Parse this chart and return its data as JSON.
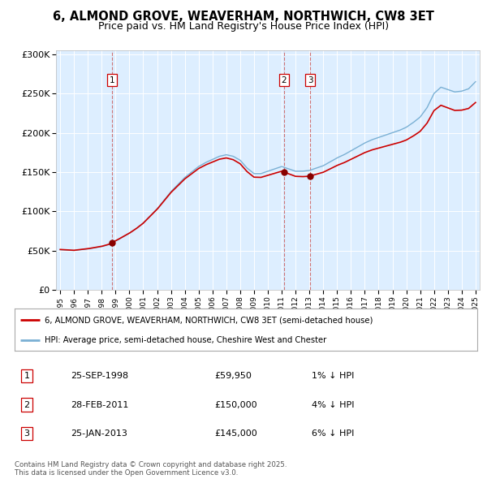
{
  "title": "6, ALMOND GROVE, WEAVERHAM, NORTHWICH, CW8 3ET",
  "subtitle": "Price paid vs. HM Land Registry's House Price Index (HPI)",
  "legend_line1": "6, ALMOND GROVE, WEAVERHAM, NORTHWICH, CW8 3ET (semi-detached house)",
  "legend_line2": "HPI: Average price, semi-detached house, Cheshire West and Chester",
  "footer": "Contains HM Land Registry data © Crown copyright and database right 2025.\nThis data is licensed under the Open Government Licence v3.0.",
  "transactions": [
    {
      "num": 1,
      "date": "25-SEP-1998",
      "price": "£59,950",
      "pct": "1% ↓ HPI"
    },
    {
      "num": 2,
      "date": "28-FEB-2011",
      "price": "£150,000",
      "pct": "4% ↓ HPI"
    },
    {
      "num": 3,
      "date": "25-JAN-2013",
      "price": "£145,000",
      "pct": "6% ↓ HPI"
    }
  ],
  "sale_dates_year": [
    1998.73,
    2011.16,
    2013.07
  ],
  "sale_prices": [
    59950,
    150000,
    145000
  ],
  "ylim": [
    0,
    305000
  ],
  "xlim_start": 1994.7,
  "xlim_end": 2025.3,
  "bg_color": "#ddeeff",
  "red_color": "#cc0000",
  "blue_color": "#7ab0d4",
  "grid_color": "#ffffff",
  "title_fontsize": 10.5,
  "subtitle_fontsize": 9,
  "hpi_waypoints_x": [
    1995,
    1995.5,
    1996,
    1997,
    1997.5,
    1998,
    1998.5,
    1999,
    1999.5,
    2000,
    2000.5,
    2001,
    2001.5,
    2002,
    2002.5,
    2003,
    2003.5,
    2004,
    2004.5,
    2005,
    2005.5,
    2006,
    2006.5,
    2007,
    2007.5,
    2008,
    2008.5,
    2009,
    2009.5,
    2010,
    2010.5,
    2011,
    2011.5,
    2012,
    2012.5,
    2013,
    2013.5,
    2014,
    2014.5,
    2015,
    2015.5,
    2016,
    2016.5,
    2017,
    2017.5,
    2018,
    2018.5,
    2019,
    2019.5,
    2020,
    2020.5,
    2021,
    2021.5,
    2022,
    2022.5,
    2023,
    2023.5,
    2024,
    2024.5,
    2025
  ],
  "hpi_waypoints_v": [
    51000,
    50500,
    50000,
    52000,
    53500,
    55000,
    57500,
    62000,
    67000,
    72000,
    78000,
    85000,
    94000,
    103000,
    114000,
    125000,
    134000,
    143000,
    150000,
    157000,
    162000,
    166000,
    170000,
    172000,
    170000,
    165000,
    155000,
    148000,
    148000,
    151000,
    154000,
    157000,
    154000,
    151000,
    151000,
    152000,
    155000,
    158000,
    163000,
    168000,
    172000,
    177000,
    182000,
    187000,
    191000,
    194000,
    197000,
    200000,
    203000,
    207000,
    213000,
    220000,
    232000,
    250000,
    258000,
    255000,
    252000,
    253000,
    256000,
    265000
  ]
}
